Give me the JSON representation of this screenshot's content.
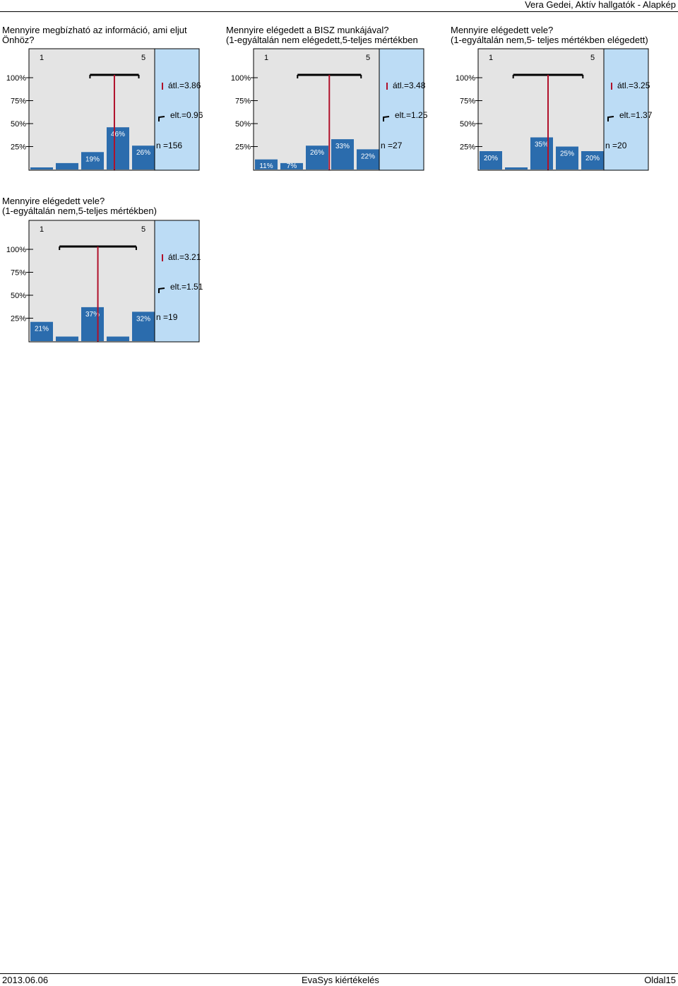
{
  "header": {
    "title": "Vera Gedei, Aktív hallgatók - Alapkép"
  },
  "footer": {
    "date": "2013.06.06",
    "center": "EvaSys kiértékelés",
    "page": "Oldal15"
  },
  "colors": {
    "bar": "#2b6cad",
    "left_bg": "#e4e4e4",
    "right_bg": "#bcdcf5",
    "mean_line": "#b0102a"
  },
  "charts": [
    {
      "question": [
        "Mennyire megbízható az információ, ami eljut",
        "Önhöz?"
      ],
      "scale_labels": [
        "1",
        "5"
      ],
      "y_ticks": [
        "100%",
        "75%",
        "50%",
        "25%"
      ],
      "stats": {
        "mean": "átl.=3.86",
        "sd": "elt.=0.96",
        "n": "n =156"
      }
    },
    {
      "question": [
        "Mennyire elégedett a BISZ munkájával?",
        "(1-egyáltalán nem elégedett,5-teljes mértékben"
      ],
      "scale_labels": [
        "1",
        "5"
      ],
      "y_ticks": [
        "100%",
        "75%",
        "50%",
        "25%"
      ],
      "stats": {
        "mean": "átl.=3.48",
        "sd": "elt.=1.25",
        "n": "n =27"
      }
    },
    {
      "question": [
        "Mennyire elégedett vele?",
        "(1-egyáltalán nem,5- teljes mértékben elégedett)"
      ],
      "scale_labels": [
        "1",
        "5"
      ],
      "y_ticks": [
        "100%",
        "75%",
        "50%",
        "25%"
      ],
      "stats": {
        "mean": "átl.=3.25",
        "sd": "elt.=1.37",
        "n": "n =20"
      }
    },
    {
      "question": [
        "Mennyire elégedett vele?",
        "(1-egyáltalán nem,5-teljes mértékben)"
      ],
      "scale_labels": [
        "1",
        "5"
      ],
      "y_ticks": [
        "100%",
        "75%",
        "50%",
        "25%"
      ],
      "stats": {
        "mean": "átl.=3.21",
        "sd": "elt.=1.51",
        "n": "n =19"
      }
    }
  ],
  "chart_data": [
    {
      "type": "bar",
      "categories": [
        "1",
        "2",
        "3",
        "4",
        "5"
      ],
      "values": [
        2,
        7,
        19,
        46,
        26
      ],
      "value_labels": [
        "",
        "",
        "19%",
        "46%",
        "26%"
      ],
      "ylim": [
        0,
        100
      ],
      "mean": 3.86,
      "sd": 0.96,
      "n": 156
    },
    {
      "type": "bar",
      "categories": [
        "1",
        "2",
        "3",
        "4",
        "5"
      ],
      "values": [
        11,
        7,
        26,
        33,
        22
      ],
      "value_labels": [
        "11%",
        "7%",
        "26%",
        "33%",
        "22%"
      ],
      "ylim": [
        0,
        100
      ],
      "mean": 3.48,
      "sd": 1.25,
      "n": 27
    },
    {
      "type": "bar",
      "categories": [
        "1",
        "2",
        "3",
        "4",
        "5"
      ],
      "values": [
        20,
        0,
        35,
        25,
        20
      ],
      "value_labels": [
        "20%",
        "",
        "35%",
        "25%",
        "20%"
      ],
      "ylim": [
        0,
        100
      ],
      "mean": 3.25,
      "sd": 1.37,
      "n": 20
    },
    {
      "type": "bar",
      "categories": [
        "1",
        "2",
        "3",
        "4",
        "5"
      ],
      "values": [
        21,
        5,
        37,
        5,
        32
      ],
      "value_labels": [
        "21%",
        "",
        "37%",
        "",
        "32%"
      ],
      "ylim": [
        0,
        100
      ],
      "mean": 3.21,
      "sd": 1.51,
      "n": 19
    }
  ]
}
